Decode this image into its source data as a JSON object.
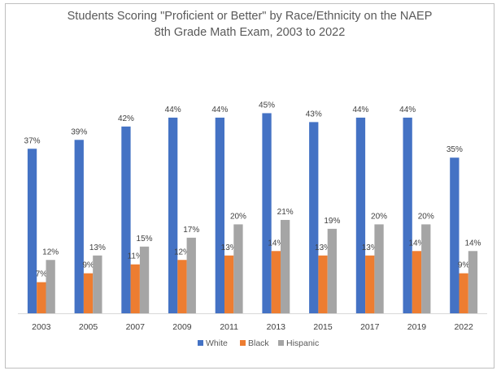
{
  "chart_data": {
    "type": "bar",
    "title_lines": [
      "Students Scoring \"Proficient or Better\" by Race/Ethnicity on the NAEP",
      "8th Grade Math Exam, 2003 to 2022"
    ],
    "categories": [
      "2003",
      "2005",
      "2007",
      "2009",
      "2011",
      "2013",
      "2015",
      "2017",
      "2019",
      "2022"
    ],
    "series": [
      {
        "name": "White",
        "color": "#4472C4",
        "values": [
          37,
          39,
          42,
          44,
          44,
          45,
          43,
          44,
          44,
          35
        ],
        "labels": [
          "37%",
          "39%",
          "42%",
          "44%",
          "44%",
          "45%",
          "43%",
          "44%",
          "44%",
          "35%"
        ]
      },
      {
        "name": "Black",
        "color": "#ED7D31",
        "values": [
          7,
          9,
          11,
          12,
          13,
          14,
          13,
          13,
          14,
          9
        ],
        "labels": [
          "7%",
          "9%",
          "11%",
          "12%",
          "13%",
          "14%",
          "13%",
          "13%",
          "14%",
          "9%"
        ]
      },
      {
        "name": "Hispanic",
        "color": "#A5A5A5",
        "values": [
          12,
          13,
          15,
          17,
          20,
          21,
          19,
          20,
          20,
          14
        ],
        "labels": [
          "12%",
          "13%",
          "15%",
          "17%",
          "20%",
          "21%",
          "19%",
          "20%",
          "20%",
          "14%"
        ]
      }
    ],
    "xlabel": "",
    "ylabel": "",
    "ylim": [
      0,
      48
    ],
    "grid": false,
    "legend_position": "bottom"
  }
}
